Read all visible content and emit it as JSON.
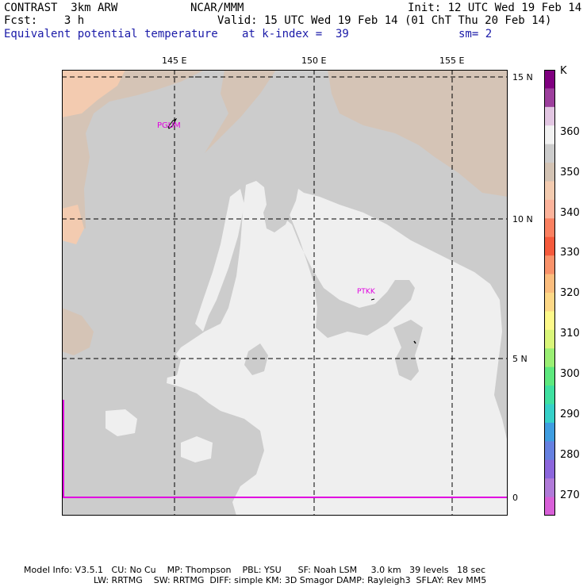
{
  "header": {
    "model": "CONTRAST  3km ARW",
    "org": "NCAR/MMM",
    "init": "Init: 12 UTC Wed 19 Feb 14",
    "fcst": "Fcst:    3 h",
    "valid": "Valid: 15 UTC Wed 19 Feb 14 (01 ChT Thu 20 Feb 14)",
    "field": "Equivalent potential temperature",
    "level": "at k-index =  39",
    "smoothing": "sm= 2"
  },
  "map": {
    "lon_labels": [
      "145 E",
      "150 E",
      "155 E"
    ],
    "lat_labels": [
      "15 N",
      "10 N",
      "5 N",
      "0"
    ],
    "stations": [
      "PGUM",
      "PTKK"
    ]
  },
  "colorbar": {
    "unit": "K",
    "labels": [
      "360",
      "350",
      "340",
      "330",
      "320",
      "310",
      "300",
      "290",
      "280",
      "270"
    ],
    "colors": [
      "#800080",
      "#9d3f9d",
      "#e2c6e2",
      "#f2f2f2",
      "#cccccc",
      "#d3c3b4",
      "#f3cbb0",
      "#fcb39b",
      "#fa8060",
      "#f55a3c",
      "#f9926a",
      "#fbbd7e",
      "#fdd887",
      "#fdf98a",
      "#d9f67a",
      "#9aef74",
      "#5de87e",
      "#3fe0a0",
      "#36d0c8",
      "#3f9de0",
      "#6680e0",
      "#8c66dc",
      "#b07ad8",
      "#d860d8"
    ]
  },
  "footer": {
    "line1": "Model Info: V3.5.1   CU: No Cu    MP: Thompson    PBL: YSU      SF: Noah LSM     3.0 km   39 levels   18 sec",
    "line2": "LW: RRTMG    SW: RRTMG  DIFF: simple KM: 3D Smagor DAMP: Rayleigh3  SFLAY: Rev MM5"
  }
}
